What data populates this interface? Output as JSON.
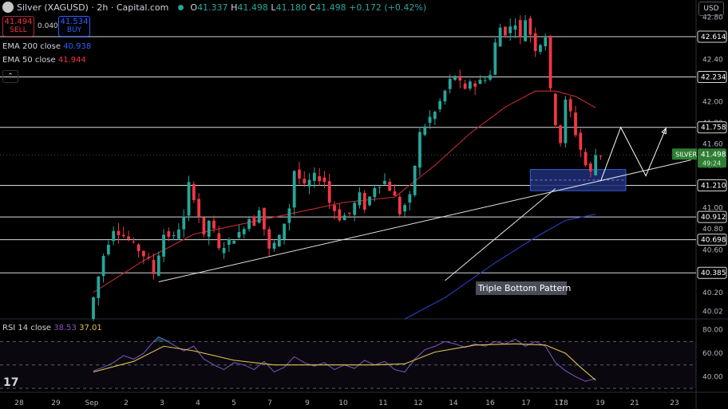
{
  "header": {
    "symbol": "Silver (XAGUSD) · 2h · Capital.com",
    "o_label": "O",
    "open": "41.337",
    "h_label": "H",
    "high": "41.498",
    "l_label": "L",
    "low": "41.180",
    "c_label": "C",
    "close": "41.498",
    "change": "+0.172 (+0.42%)"
  },
  "trade": {
    "sell_price": "41.494",
    "sell_label": "SELL",
    "spread": "0.040",
    "buy_price": "41.534",
    "buy_label": "BUY"
  },
  "indicators": {
    "ema200_label": "EMA 200 close",
    "ema200_value": "40.938",
    "ema50_label": "EMA 50 close",
    "ema50_value": "41.944"
  },
  "currency_button": "USD",
  "rsi": {
    "label": "RSI 14 close",
    "rsi_value": "38.53",
    "ma_value": "37.01"
  },
  "colors": {
    "up": "#26a69a",
    "down": "#f23645",
    "ema50": "#b2282f",
    "ema200": "#2a3ab8",
    "rsi": "#7e57c2",
    "rsi_ma": "#e0c34a",
    "zone": "#1f2f78"
  },
  "chart_data": {
    "type": "candlestick",
    "instrument": "Silver (XAGUSD)",
    "timeframe": "2h",
    "y_ticks": [
      40.02,
      40.2,
      40.4,
      40.6,
      40.8,
      41.0,
      41.2,
      41.4,
      41.6,
      41.8,
      42.0,
      42.2,
      42.4,
      42.6,
      42.8
    ],
    "ylim": [
      39.95,
      42.96
    ],
    "x_ticks": [
      "28",
      "29",
      "Sep",
      "2",
      "3",
      "4",
      "5",
      "7",
      "9",
      "10",
      "11",
      "12",
      "14",
      "16",
      "17",
      "17",
      "18",
      "19",
      "21",
      "23"
    ],
    "horizontal_levels": [
      42.614,
      42.234,
      41.758,
      41.21,
      40.912,
      40.698,
      40.385
    ],
    "dotted_level": 41.498,
    "current_price_label": "SILVER",
    "current_price": "41.498",
    "countdown": "49:24",
    "annotation": "Triple Bottom Pattern",
    "support_zone": [
      41.16,
      41.36
    ],
    "price_path": [
      [
        0,
        39.95
      ],
      [
        3,
        40.55
      ],
      [
        5,
        40.8
      ],
      [
        8,
        40.7
      ],
      [
        10,
        40.6
      ],
      [
        12,
        40.5
      ],
      [
        13,
        40.38
      ],
      [
        15,
        40.75
      ],
      [
        17,
        40.72
      ],
      [
        19,
        40.9
      ],
      [
        20,
        41.22
      ],
      [
        21,
        41.1
      ],
      [
        22,
        40.92
      ],
      [
        23,
        40.72
      ],
      [
        24,
        40.88
      ],
      [
        25,
        40.78
      ],
      [
        26,
        40.6
      ],
      [
        28,
        40.68
      ],
      [
        30,
        40.75
      ],
      [
        32,
        40.9
      ],
      [
        33,
        40.85
      ],
      [
        34,
        41.0
      ],
      [
        35,
        40.8
      ],
      [
        36,
        40.6
      ],
      [
        38,
        40.72
      ],
      [
        40,
        41.0
      ],
      [
        41,
        41.35
      ],
      [
        43,
        41.2
      ],
      [
        45,
        41.3
      ],
      [
        47,
        41.25
      ],
      [
        48,
        41.05
      ],
      [
        50,
        40.9
      ],
      [
        52,
        40.95
      ],
      [
        54,
        41.12
      ],
      [
        55,
        41.0
      ],
      [
        57,
        41.2
      ],
      [
        59,
        41.25
      ],
      [
        61,
        41.1
      ],
      [
        62,
        40.95
      ],
      [
        64,
        41.1
      ],
      [
        66,
        41.7
      ],
      [
        68,
        41.85
      ],
      [
        69,
        41.9
      ],
      [
        70,
        42.0
      ],
      [
        72,
        42.2
      ],
      [
        73,
        42.25
      ],
      [
        75,
        42.1
      ],
      [
        76,
        42.2
      ],
      [
        77,
        42.15
      ],
      [
        78,
        42.2
      ],
      [
        80,
        42.25
      ],
      [
        81,
        42.55
      ],
      [
        82,
        42.7
      ],
      [
        83,
        42.65
      ],
      [
        85,
        42.75
      ],
      [
        86,
        42.6
      ],
      [
        87,
        42.78
      ],
      [
        89,
        42.5
      ],
      [
        90,
        42.55
      ],
      [
        91,
        42.62
      ],
      [
        92,
        42.1
      ],
      [
        93,
        41.8
      ],
      [
        94,
        41.62
      ],
      [
        95,
        42.0
      ],
      [
        96,
        41.9
      ],
      [
        97,
        41.7
      ],
      [
        98,
        41.55
      ],
      [
        99,
        41.4
      ],
      [
        100,
        41.33
      ],
      [
        101,
        41.498
      ]
    ],
    "ema50_path": [
      [
        0,
        40.2
      ],
      [
        10,
        40.5
      ],
      [
        20,
        40.75
      ],
      [
        35,
        40.9
      ],
      [
        50,
        41.05
      ],
      [
        60,
        41.1
      ],
      [
        68,
        41.4
      ],
      [
        75,
        41.7
      ],
      [
        82,
        41.95
      ],
      [
        88,
        42.1
      ],
      [
        92,
        42.1
      ],
      [
        96,
        42.05
      ],
      [
        100,
        41.944
      ]
    ],
    "ema200_path": [
      [
        62,
        39.95
      ],
      [
        70,
        40.15
      ],
      [
        80,
        40.48
      ],
      [
        88,
        40.72
      ],
      [
        94,
        40.88
      ],
      [
        100,
        40.938
      ]
    ],
    "projection_path": [
      [
        101,
        41.25
      ],
      [
        105,
        41.758
      ],
      [
        110,
        41.3
      ],
      [
        114,
        41.75
      ]
    ],
    "trendline": [
      [
        13,
        40.3
      ],
      [
        119,
        41.45
      ]
    ],
    "rsi_ticks": [
      40.0,
      60.0,
      80.0
    ],
    "rsi_ylim": [
      28,
      88
    ],
    "rsi_levels": [
      70,
      50,
      30
    ],
    "rsi_path": [
      [
        0,
        45
      ],
      [
        2,
        48
      ],
      [
        4,
        52
      ],
      [
        6,
        58
      ],
      [
        8,
        55
      ],
      [
        10,
        60
      ],
      [
        12,
        70
      ],
      [
        13,
        74
      ],
      [
        14,
        72
      ],
      [
        16,
        67
      ],
      [
        18,
        62
      ],
      [
        20,
        66
      ],
      [
        22,
        55
      ],
      [
        24,
        50
      ],
      [
        26,
        46
      ],
      [
        28,
        52
      ],
      [
        30,
        50
      ],
      [
        32,
        46
      ],
      [
        34,
        53
      ],
      [
        36,
        44
      ],
      [
        38,
        48
      ],
      [
        40,
        57
      ],
      [
        42,
        52
      ],
      [
        44,
        49
      ],
      [
        46,
        52
      ],
      [
        48,
        46
      ],
      [
        50,
        50
      ],
      [
        52,
        47
      ],
      [
        54,
        54
      ],
      [
        56,
        50
      ],
      [
        58,
        53
      ],
      [
        60,
        46
      ],
      [
        62,
        44
      ],
      [
        64,
        55
      ],
      [
        66,
        63
      ],
      [
        68,
        66
      ],
      [
        70,
        70
      ],
      [
        72,
        68
      ],
      [
        74,
        65
      ],
      [
        76,
        68
      ],
      [
        78,
        66
      ],
      [
        80,
        70
      ],
      [
        82,
        68
      ],
      [
        84,
        72
      ],
      [
        86,
        66
      ],
      [
        88,
        70
      ],
      [
        90,
        66
      ],
      [
        92,
        52
      ],
      [
        94,
        45
      ],
      [
        96,
        40
      ],
      [
        98,
        36
      ],
      [
        100,
        38.53
      ]
    ],
    "rsi_ma_path": [
      [
        0,
        44
      ],
      [
        8,
        53
      ],
      [
        14,
        66
      ],
      [
        20,
        62
      ],
      [
        28,
        54
      ],
      [
        36,
        50
      ],
      [
        46,
        50
      ],
      [
        56,
        50
      ],
      [
        62,
        51
      ],
      [
        68,
        61
      ],
      [
        76,
        67
      ],
      [
        84,
        68
      ],
      [
        90,
        67
      ],
      [
        94,
        60
      ],
      [
        97,
        48
      ],
      [
        100,
        37.01
      ]
    ]
  }
}
